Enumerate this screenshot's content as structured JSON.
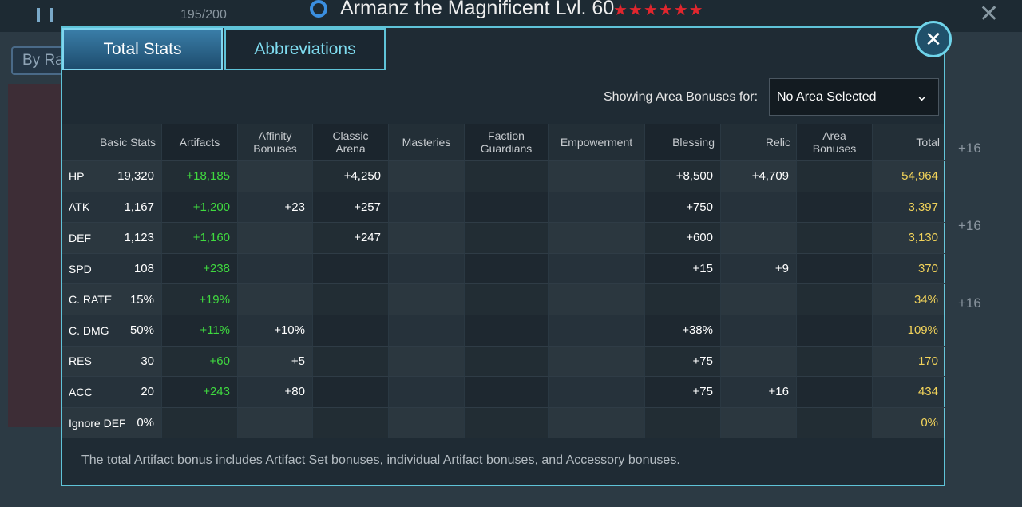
{
  "header": {
    "title": "Armanz the Magnificent Lvl. 60",
    "counter": "195/200",
    "sort_button": "By Ra"
  },
  "tabs": [
    "Total Stats",
    "Abbreviations"
  ],
  "area_filter": {
    "label": "Showing Area Bonuses for:",
    "value": "No Area Selected"
  },
  "table": {
    "columns": [
      "Basic Stats",
      "Artifacts",
      "Affinity Bonuses",
      "Classic Arena",
      "Masteries",
      "Faction Guardians",
      "Empowerment",
      "Blessing",
      "Relic",
      "Area Bonuses",
      "Total"
    ],
    "rows": [
      [
        "HP",
        "19,320",
        "+18,185",
        null,
        "+4,250",
        null,
        null,
        null,
        "+8,500",
        "+4,709",
        null,
        "54,964"
      ],
      [
        "ATK",
        "1,167",
        "+1,200",
        "+23",
        "+257",
        null,
        null,
        null,
        "+750",
        null,
        null,
        "3,397"
      ],
      [
        "DEF",
        "1,123",
        "+1,160",
        null,
        "+247",
        null,
        null,
        null,
        "+600",
        null,
        null,
        "3,130"
      ],
      [
        "SPD",
        "108",
        "+238",
        null,
        null,
        null,
        null,
        null,
        "+15",
        "+9",
        null,
        "370"
      ],
      [
        "C. RATE",
        "15%",
        "+19%",
        null,
        null,
        null,
        null,
        null,
        null,
        null,
        null,
        "34%"
      ],
      [
        "C. DMG",
        "50%",
        "+11%",
        "+10%",
        null,
        null,
        null,
        null,
        "+38%",
        null,
        null,
        "109%"
      ],
      [
        "RES",
        "30",
        "+60",
        "+5",
        null,
        null,
        null,
        null,
        "+75",
        null,
        null,
        "170"
      ],
      [
        "ACC",
        "20",
        "+243",
        "+80",
        null,
        null,
        null,
        null,
        "+75",
        "+16",
        null,
        "434"
      ],
      [
        "Ignore DEF",
        "0%",
        null,
        null,
        null,
        null,
        null,
        null,
        null,
        null,
        null,
        "0%"
      ]
    ]
  },
  "footnote": "The total Artifact bonus includes Artifact Set bonuses, individual Artifact bonuses, and Accessory bonuses.",
  "side_badges": [
    "+16",
    "+16",
    "+16"
  ]
}
